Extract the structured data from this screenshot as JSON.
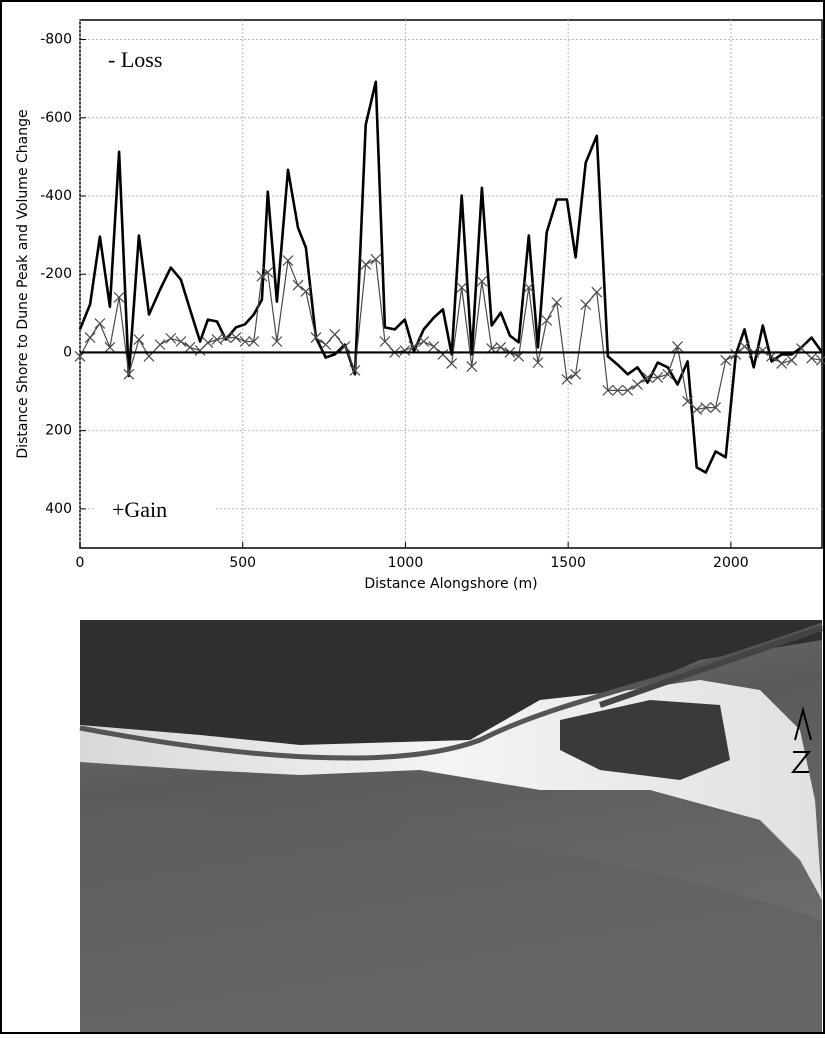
{
  "chart_data": {
    "type": "line",
    "y_label": "Distance Shore to Dune Peak and Volume Change",
    "x_label": "Distance Alongshore (m)",
    "annotations": [
      "- Loss",
      "+Gain"
    ],
    "x": [
      0,
      31,
      61,
      92,
      120,
      150,
      181,
      212,
      246,
      279,
      310,
      338,
      369,
      393,
      421,
      448,
      479,
      507,
      534,
      559,
      577,
      605,
      639,
      670,
      694,
      725,
      755,
      783,
      814,
      845,
      878,
      909,
      937,
      967,
      998,
      1026,
      1056,
      1087,
      1115,
      1142,
      1173,
      1204,
      1235,
      1265,
      1293,
      1321,
      1348,
      1379,
      1407,
      1434,
      1465,
      1496,
      1523,
      1554,
      1588,
      1622,
      1652,
      1683,
      1713,
      1744,
      1775,
      1806,
      1836,
      1867,
      1895,
      1923,
      1953,
      1984,
      2015,
      2042,
      2070,
      2098,
      2125,
      2156,
      2187,
      2217,
      2248,
      2278
    ],
    "series": [
      {
        "color": "#000000",
        "width": 2.6,
        "marker": "none",
        "values": [
          -59,
          -123,
          -296,
          -117,
          -513,
          60,
          -299,
          -97,
          -161,
          -217,
          -186,
          -110,
          -28,
          -84,
          -79,
          -33,
          -64,
          -72,
          -97,
          -135,
          -411,
          -130,
          -467,
          -319,
          -268,
          -38,
          13,
          5,
          -20,
          56,
          -582,
          -692,
          -64,
          -59,
          -84,
          -3,
          -59,
          -89,
          -110,
          5,
          -401,
          5,
          -421,
          -69,
          -102,
          -43,
          -26,
          -299,
          -13,
          -307,
          -391,
          -391,
          -243,
          -485,
          -554,
          10,
          31,
          56,
          38,
          77,
          26,
          38,
          82,
          23,
          294,
          307,
          253,
          268,
          5,
          -59,
          38,
          -69,
          23,
          5,
          5,
          -13,
          -38,
          -3
        ]
      },
      {
        "color": "#4a4a4a",
        "width": 1.2,
        "marker": "x",
        "values": [
          10,
          -38,
          -74,
          -13,
          -141,
          56,
          -33,
          10,
          -20,
          -36,
          -28,
          -13,
          -5,
          -25,
          -33,
          -38,
          -38,
          -28,
          -28,
          -195,
          -205,
          -28,
          -235,
          -172,
          -156,
          -38,
          -20,
          -46,
          -15,
          46,
          -225,
          -238,
          -28,
          0,
          -5,
          -15,
          -28,
          -15,
          5,
          28,
          -166,
          36,
          -182,
          -10,
          -13,
          0,
          10,
          -166,
          26,
          -82,
          -128,
          69,
          56,
          -122,
          -154,
          97,
          97,
          97,
          82,
          64,
          64,
          56,
          -15,
          125,
          146,
          141,
          141,
          20,
          5,
          -15,
          0,
          -5,
          10,
          28,
          20,
          -10,
          15,
          20
        ]
      }
    ],
    "xlim": [
      0,
      2280
    ],
    "ylim": [
      -850,
      500
    ],
    "y_inverted": true,
    "xticks": [
      0,
      500,
      1000,
      1500,
      2000
    ],
    "yticks": [
      -800,
      -600,
      -400,
      -200,
      0,
      200,
      400
    ],
    "grid": true,
    "zero_line": true
  }
}
